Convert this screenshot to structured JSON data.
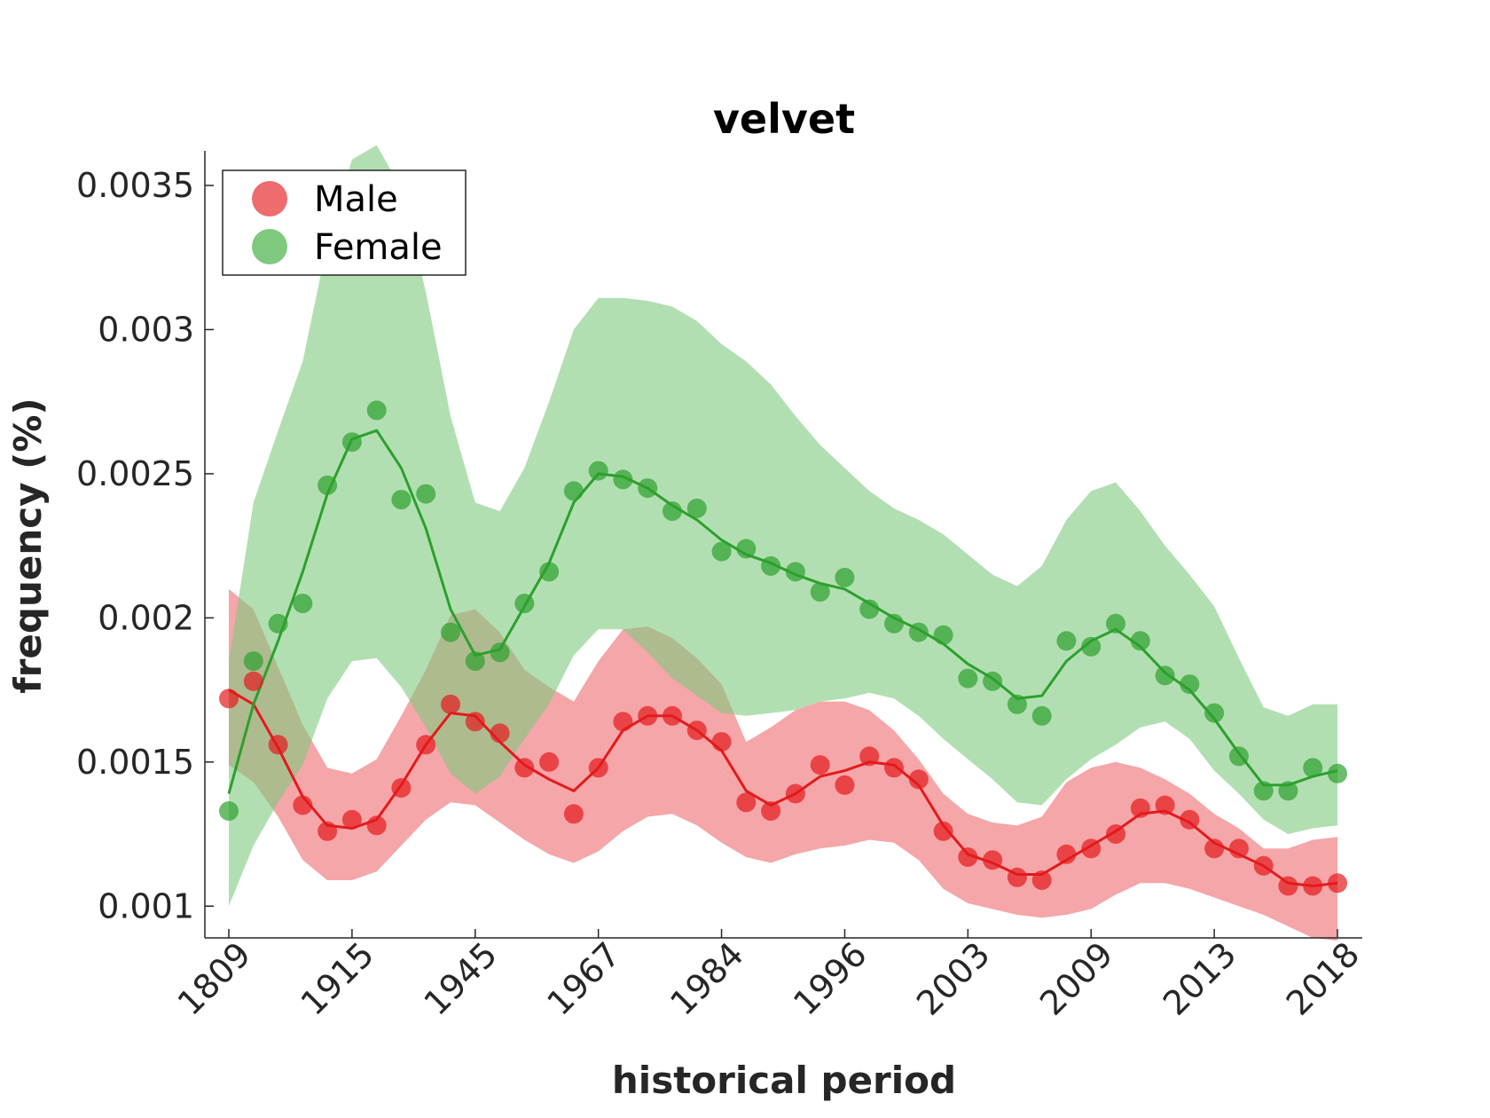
{
  "chart_data": {
    "type": "line",
    "title": "velvet",
    "xlabel": "historical period",
    "ylabel": "frequency (%)",
    "ylim": [
      0.00089,
      0.00362
    ],
    "yticks": [
      0.001,
      0.0015,
      0.002,
      0.0025,
      0.003,
      0.0035
    ],
    "ytick_labels": [
      "0.001",
      "0.0015",
      "0.002",
      "0.0025",
      "0.003",
      "0.0035"
    ],
    "xticks": [
      1,
      6,
      11,
      16,
      21,
      26,
      31,
      36,
      41,
      46
    ],
    "xtick_labels": [
      "1809",
      "1915",
      "1945",
      "1967",
      "1984",
      "1996",
      "2003",
      "2009",
      "2013",
      "2018"
    ],
    "x": [
      1,
      2,
      3,
      4,
      5,
      6,
      7,
      8,
      9,
      10,
      11,
      12,
      13,
      14,
      15,
      16,
      17,
      18,
      19,
      20,
      21,
      22,
      23,
      24,
      25,
      26,
      27,
      28,
      29,
      30,
      31,
      32,
      33,
      34,
      35,
      36,
      37,
      38,
      39,
      40,
      41,
      42,
      43,
      44,
      45,
      46
    ],
    "legend": {
      "position": "top-left",
      "entries": [
        "Male",
        "Female"
      ]
    },
    "grid": false,
    "series": [
      {
        "name": "Male",
        "color": "#e41a1c",
        "band_color": "#ee6b6e",
        "points": [
          0.00172,
          0.00178,
          0.00156,
          0.00135,
          0.00126,
          0.0013,
          0.00128,
          0.00141,
          0.00156,
          0.0017,
          0.00164,
          0.0016,
          0.00148,
          0.0015,
          0.00132,
          0.00148,
          0.00164,
          0.00166,
          0.00166,
          0.00161,
          0.00157,
          0.00136,
          0.00133,
          0.00139,
          0.00149,
          0.00142,
          0.00152,
          0.00148,
          0.00144,
          0.00126,
          0.00117,
          0.00116,
          0.0011,
          0.00109,
          0.00118,
          0.0012,
          0.00125,
          0.00134,
          0.00135,
          0.0013,
          0.0012,
          0.0012,
          0.00114,
          0.00107,
          0.00107,
          0.00108
        ],
        "smooth": [
          0.00175,
          0.0017,
          0.00155,
          0.00138,
          0.00128,
          0.00127,
          0.0013,
          0.00142,
          0.00156,
          0.00167,
          0.00166,
          0.00157,
          0.00149,
          0.00144,
          0.0014,
          0.00148,
          0.00161,
          0.00166,
          0.00166,
          0.00161,
          0.00154,
          0.0014,
          0.00135,
          0.00139,
          0.00145,
          0.00147,
          0.0015,
          0.00149,
          0.00142,
          0.00128,
          0.00118,
          0.00115,
          0.00111,
          0.00111,
          0.00116,
          0.00121,
          0.00126,
          0.00132,
          0.00133,
          0.00129,
          0.00122,
          0.00118,
          0.00114,
          0.00108,
          0.00107,
          0.00108
        ],
        "upper": [
          0.0021,
          0.00203,
          0.00183,
          0.00163,
          0.00148,
          0.00146,
          0.00151,
          0.00166,
          0.00182,
          0.00201,
          0.00203,
          0.00195,
          0.00182,
          0.00176,
          0.00171,
          0.00185,
          0.00196,
          0.00197,
          0.00193,
          0.00186,
          0.00177,
          0.00157,
          0.00162,
          0.00168,
          0.00171,
          0.00171,
          0.00168,
          0.00161,
          0.00151,
          0.00139,
          0.00132,
          0.00129,
          0.00128,
          0.00131,
          0.00143,
          0.00148,
          0.0015,
          0.00148,
          0.00144,
          0.00139,
          0.00132,
          0.00127,
          0.0012,
          0.0012,
          0.00123,
          0.00124
        ],
        "lower": [
          0.00149,
          0.00143,
          0.00131,
          0.00116,
          0.00109,
          0.00109,
          0.00112,
          0.00121,
          0.0013,
          0.00136,
          0.00135,
          0.00129,
          0.00123,
          0.00118,
          0.00115,
          0.00119,
          0.00126,
          0.00131,
          0.00132,
          0.00128,
          0.00122,
          0.00117,
          0.00115,
          0.00118,
          0.0012,
          0.00121,
          0.00123,
          0.00122,
          0.00116,
          0.00106,
          0.00101,
          0.00099,
          0.00097,
          0.00096,
          0.00097,
          0.00099,
          0.00104,
          0.00108,
          0.00108,
          0.00106,
          0.00103,
          0.001,
          0.00097,
          0.00093,
          0.00089,
          0.00088
        ]
      },
      {
        "name": "Female",
        "color": "#2ca02c",
        "band_color": "#7fc97f",
        "points": [
          0.00133,
          0.00185,
          0.00198,
          0.00205,
          0.00246,
          0.00261,
          0.00272,
          0.00241,
          0.00243,
          0.00195,
          0.00185,
          0.00188,
          0.00205,
          0.00216,
          0.00244,
          0.00251,
          0.00248,
          0.00245,
          0.00237,
          0.00238,
          0.00223,
          0.00224,
          0.00218,
          0.00216,
          0.00209,
          0.00214,
          0.00203,
          0.00198,
          0.00195,
          0.00194,
          0.00179,
          0.00178,
          0.0017,
          0.00166,
          0.00192,
          0.0019,
          0.00198,
          0.00192,
          0.0018,
          0.00177,
          0.00167,
          0.00152,
          0.0014,
          0.0014,
          0.00148,
          0.00146
        ],
        "smooth": [
          0.00139,
          0.0017,
          0.00192,
          0.00216,
          0.00243,
          0.00262,
          0.00265,
          0.00252,
          0.00231,
          0.00203,
          0.00187,
          0.00189,
          0.00204,
          0.00219,
          0.0024,
          0.0025,
          0.00249,
          0.00245,
          0.00239,
          0.00234,
          0.00227,
          0.00222,
          0.00219,
          0.00215,
          0.00212,
          0.0021,
          0.00205,
          0.002,
          0.00196,
          0.00191,
          0.00184,
          0.00179,
          0.00172,
          0.00173,
          0.00185,
          0.00192,
          0.00196,
          0.0019,
          0.00181,
          0.00175,
          0.00165,
          0.00153,
          0.00142,
          0.00142,
          0.00145,
          0.00147
        ],
        "upper": [
          0.00185,
          0.0024,
          0.00265,
          0.00289,
          0.0033,
          0.00359,
          0.00364,
          0.00349,
          0.00313,
          0.0027,
          0.0024,
          0.00237,
          0.00252,
          0.00275,
          0.003,
          0.00311,
          0.00311,
          0.0031,
          0.00308,
          0.00303,
          0.00295,
          0.00289,
          0.00281,
          0.0027,
          0.0026,
          0.00252,
          0.00244,
          0.00238,
          0.00234,
          0.00229,
          0.00222,
          0.00215,
          0.00211,
          0.00218,
          0.00234,
          0.00244,
          0.00247,
          0.00237,
          0.00225,
          0.00215,
          0.00204,
          0.00186,
          0.00169,
          0.00166,
          0.0017,
          0.0017
        ],
        "lower": [
          0.001,
          0.00121,
          0.00136,
          0.00149,
          0.00172,
          0.00185,
          0.00186,
          0.00176,
          0.00162,
          0.00146,
          0.00139,
          0.00145,
          0.00158,
          0.0017,
          0.00187,
          0.00196,
          0.00196,
          0.00188,
          0.00179,
          0.00173,
          0.00167,
          0.00166,
          0.00167,
          0.00168,
          0.00171,
          0.00172,
          0.00174,
          0.00172,
          0.00166,
          0.00158,
          0.00151,
          0.00144,
          0.00136,
          0.00135,
          0.00144,
          0.00151,
          0.00156,
          0.00162,
          0.00164,
          0.00158,
          0.00147,
          0.00139,
          0.0013,
          0.00125,
          0.00127,
          0.00128
        ]
      }
    ]
  }
}
